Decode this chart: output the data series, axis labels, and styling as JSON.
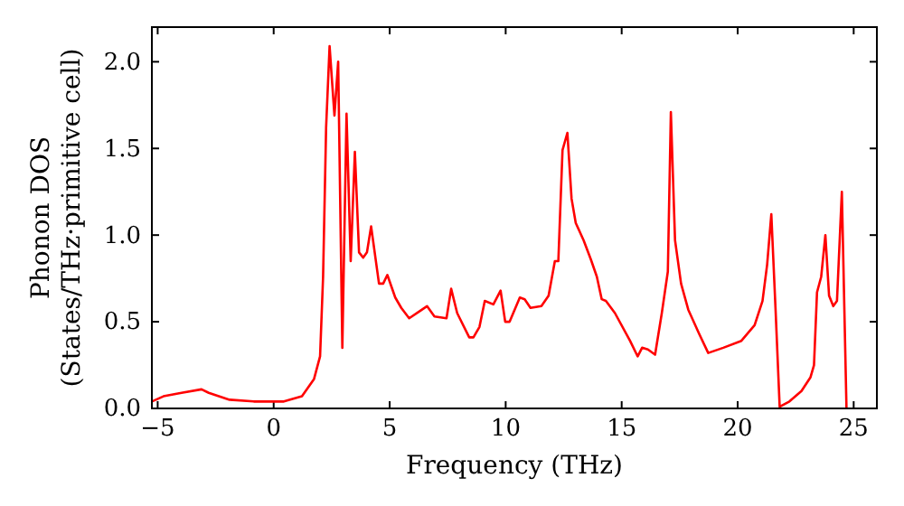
{
  "chart_data": {
    "type": "line",
    "xlabel": "Frequency (THz)",
    "ylabel": "Phonon DOS\n(States/THz·primitive cell)",
    "xlim": [
      -5.25,
      26
    ],
    "ylim": [
      0,
      2.2
    ],
    "xticks": [
      {
        "value": -5,
        "label": "−5"
      },
      0,
      5,
      10,
      15,
      20,
      25
    ],
    "yticks": [
      {
        "value": 0,
        "label": "0.0"
      },
      {
        "value": 0.5,
        "label": "0.5"
      },
      {
        "value": 1,
        "label": "1.0"
      },
      {
        "value": 1.5,
        "label": "1.5"
      },
      {
        "value": 2,
        "label": "2.0"
      }
    ],
    "grid": false,
    "marker": "none",
    "line_style": "solid",
    "series": [
      {
        "color": "#ff0000",
        "x": [
          -5.25,
          -4.75,
          -3.97,
          -3.11,
          -2.8,
          -1.9,
          -0.86,
          0.44,
          1.22,
          1.74,
          2.0,
          2.13,
          2.26,
          2.41,
          2.62,
          2.78,
          2.96,
          3.14,
          3.32,
          3.5,
          3.68,
          3.86,
          4.02,
          4.2,
          4.54,
          4.72,
          4.9,
          5.24,
          5.5,
          5.84,
          6.28,
          6.61,
          6.93,
          7.45,
          7.65,
          7.91,
          8.43,
          8.61,
          8.87,
          9.1,
          9.47,
          9.78,
          9.98,
          10.17,
          10.61,
          10.82,
          11.07,
          11.54,
          11.85,
          12.12,
          12.27,
          12.45,
          12.66,
          12.84,
          13.02,
          13.36,
          13.67,
          13.93,
          14.14,
          14.32,
          14.71,
          15.36,
          15.69,
          15.88,
          16.13,
          16.44,
          16.73,
          16.99,
          17.12,
          17.3,
          17.56,
          17.87,
          18.34,
          18.73,
          19.38,
          20.16,
          20.73,
          21.07,
          21.27,
          21.45,
          21.63,
          21.81,
          22.23,
          22.75,
          23.14,
          23.29,
          23.42,
          23.6,
          23.78,
          23.94,
          24.12,
          24.28,
          24.49,
          24.69
        ],
        "values": [
          0.04,
          0.07,
          0.09,
          0.11,
          0.09,
          0.05,
          0.04,
          0.04,
          0.07,
          0.17,
          0.3,
          0.76,
          1.62,
          2.09,
          1.69,
          2.0,
          0.35,
          1.7,
          0.85,
          1.48,
          0.9,
          0.87,
          0.9,
          1.05,
          0.72,
          0.72,
          0.77,
          0.64,
          0.58,
          0.52,
          0.56,
          0.59,
          0.53,
          0.52,
          0.69,
          0.55,
          0.41,
          0.41,
          0.47,
          0.62,
          0.6,
          0.68,
          0.5,
          0.5,
          0.64,
          0.63,
          0.58,
          0.59,
          0.65,
          0.85,
          0.85,
          1.49,
          1.59,
          1.21,
          1.07,
          0.97,
          0.86,
          0.76,
          0.63,
          0.62,
          0.55,
          0.39,
          0.3,
          0.35,
          0.34,
          0.31,
          0.55,
          0.79,
          1.71,
          0.97,
          0.72,
          0.57,
          0.43,
          0.32,
          0.35,
          0.39,
          0.48,
          0.62,
          0.83,
          1.12,
          0.58,
          0.01,
          0.04,
          0.1,
          0.18,
          0.25,
          0.67,
          0.76,
          1.0,
          0.65,
          0.59,
          0.62,
          1.25,
          0
        ]
      }
    ]
  }
}
